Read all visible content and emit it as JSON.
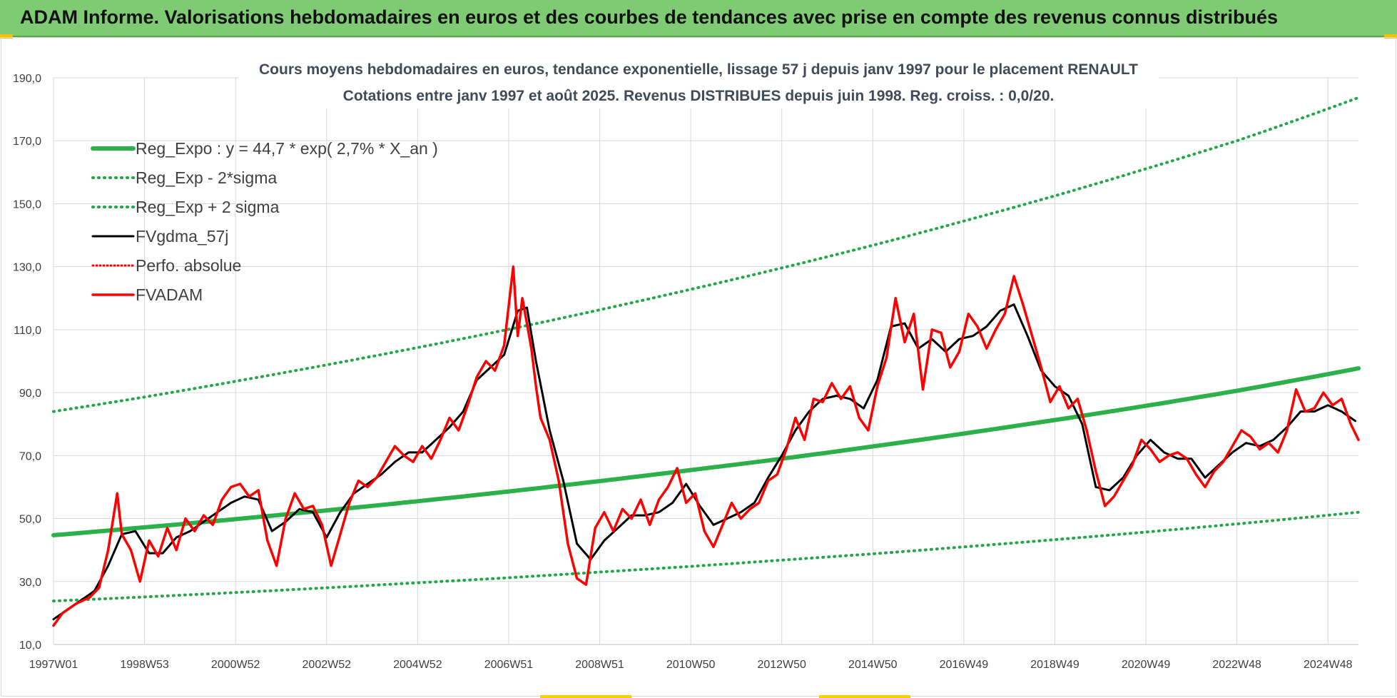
{
  "header": {
    "banner_title": "ADAM Informe. Valorisations hebdomadaires en euros et des courbes de tendances avec prise en compte des revenus connus distribués"
  },
  "colors": {
    "banner": "#7ecb74",
    "reg_expo": "#2bb04a",
    "reg_band": "#1fa845",
    "fvgdma": "#000000",
    "perfo": "#ff0000",
    "fvadam": "#ff0000",
    "grid": "#d9d9d9"
  },
  "chart_data": {
    "type": "line",
    "title": [
      "Cours moyens hebdomadaires en euros, tendance exponentielle, lissage 57 j depuis janv 1997 pour le placement RENAULT",
      "Cotations entre janv 1997 et août 2025.  Revenus DISTRIBUES depuis juin 1998.  Reg. croiss. : 0,0/20."
    ],
    "xlabel": "",
    "ylabel": "",
    "ylim": [
      10,
      190
    ],
    "xlim": [
      1997.0,
      2025.67
    ],
    "yticks": [
      "10,0",
      "30,0",
      "50,0",
      "70,0",
      "90,0",
      "110,0",
      "130,0",
      "150,0",
      "170,0",
      "190,0"
    ],
    "xticks": [
      {
        "label": "1997W01",
        "x": 1997.0
      },
      {
        "label": "1998W53",
        "x": 1999.0
      },
      {
        "label": "2000W52",
        "x": 2001.0
      },
      {
        "label": "2002W52",
        "x": 2003.0
      },
      {
        "label": "2004W52",
        "x": 2005.0
      },
      {
        "label": "2006W51",
        "x": 2007.0
      },
      {
        "label": "2008W51",
        "x": 2009.0
      },
      {
        "label": "2010W50",
        "x": 2011.0
      },
      {
        "label": "2012W50",
        "x": 2013.0
      },
      {
        "label": "2014W50",
        "x": 2015.0
      },
      {
        "label": "2016W49",
        "x": 2017.0
      },
      {
        "label": "2018W49",
        "x": 2019.0
      },
      {
        "label": "2020W49",
        "x": 2021.0
      },
      {
        "label": "2022W48",
        "x": 2023.0
      },
      {
        "label": "2024W48",
        "x": 2025.0
      }
    ],
    "grid": true,
    "legend_position": "top-left",
    "series": [
      {
        "name": "Reg_Expo : y = 44,7 * exp( 2,7% *  X_an )",
        "style": "solid-thick",
        "x": [
          1997.0,
          1999.0,
          2001.0,
          2003.0,
          2005.0,
          2007.0,
          2009.0,
          2011.0,
          2013.0,
          2015.0,
          2017.0,
          2019.0,
          2021.0,
          2023.0,
          2025.67
        ],
        "y": [
          44.7,
          47.2,
          49.8,
          52.6,
          55.5,
          58.6,
          61.9,
          65.4,
          69.0,
          72.9,
          77.0,
          81.3,
          85.8,
          90.6,
          97.7
        ]
      },
      {
        "name": "Reg_Exp - 2*sigma",
        "style": "dotted",
        "x": [
          1997.0,
          1999.0,
          2001.0,
          2003.0,
          2005.0,
          2007.0,
          2009.0,
          2011.0,
          2013.0,
          2015.0,
          2017.0,
          2019.0,
          2021.0,
          2023.0,
          2025.67
        ],
        "y": [
          23.8,
          25.1,
          26.5,
          28.0,
          29.6,
          31.2,
          33.0,
          34.8,
          36.8,
          38.8,
          41.0,
          43.3,
          45.7,
          48.3,
          52.0
        ]
      },
      {
        "name": "Reg_Exp + 2 sigma",
        "style": "dotted",
        "x": [
          1997.0,
          1999.0,
          2001.0,
          2003.0,
          2005.0,
          2007.0,
          2009.0,
          2011.0,
          2013.0,
          2015.0,
          2017.0,
          2019.0,
          2021.0,
          2023.0,
          2025.67
        ],
        "y": [
          84.0,
          88.6,
          93.6,
          98.8,
          104.3,
          110.1,
          116.3,
          122.8,
          129.6,
          136.8,
          144.5,
          152.5,
          161.1,
          170.0,
          183.7
        ]
      },
      {
        "name": "FVgdma_57j",
        "style": "solid",
        "x": [
          1997.0,
          1997.3,
          1997.6,
          1997.9,
          1998.2,
          1998.5,
          1998.8,
          1999.1,
          1999.4,
          1999.7,
          2000.0,
          2000.3,
          2000.6,
          2000.9,
          2001.2,
          2001.5,
          2001.8,
          2002.1,
          2002.4,
          2002.7,
          2003.0,
          2003.3,
          2003.6,
          2003.9,
          2004.2,
          2004.5,
          2004.8,
          2005.1,
          2005.4,
          2005.7,
          2006.0,
          2006.3,
          2006.6,
          2006.9,
          2007.2,
          2007.4,
          2007.6,
          2007.9,
          2008.2,
          2008.5,
          2008.8,
          2009.1,
          2009.4,
          2009.7,
          2010.0,
          2010.3,
          2010.6,
          2010.9,
          2011.2,
          2011.5,
          2011.8,
          2012.1,
          2012.4,
          2012.7,
          2013.0,
          2013.3,
          2013.6,
          2013.9,
          2014.2,
          2014.5,
          2014.8,
          2015.1,
          2015.4,
          2015.7,
          2016.0,
          2016.3,
          2016.6,
          2016.9,
          2017.2,
          2017.5,
          2017.8,
          2018.1,
          2018.4,
          2018.7,
          2019.0,
          2019.3,
          2019.6,
          2019.9,
          2020.2,
          2020.5,
          2020.8,
          2021.1,
          2021.4,
          2021.7,
          2022.0,
          2022.3,
          2022.6,
          2022.9,
          2023.2,
          2023.5,
          2023.8,
          2024.1,
          2024.4,
          2024.7,
          2025.0,
          2025.3,
          2025.6
        ],
        "y": [
          18,
          21,
          24,
          27,
          35,
          45,
          46,
          39,
          39,
          44,
          46,
          49,
          52,
          55,
          57,
          56,
          46,
          49,
          53,
          52,
          44,
          52,
          58,
          61,
          64,
          68,
          71,
          71,
          75,
          79,
          84,
          94,
          98,
          102,
          116,
          117,
          100,
          78,
          62,
          42,
          37,
          43,
          47,
          51,
          51,
          52,
          55,
          61,
          54,
          48,
          50,
          52,
          55,
          63,
          70,
          78,
          84,
          88,
          89,
          88,
          85,
          94,
          111,
          112,
          104,
          107,
          103,
          107,
          108,
          111,
          116,
          118,
          108,
          97,
          92,
          89,
          80,
          60,
          59,
          63,
          70,
          75,
          71,
          69,
          69,
          63,
          67,
          71,
          74,
          73,
          75,
          79,
          84,
          84,
          86,
          84,
          81
        ]
      },
      {
        "name": "Perfo. absolue",
        "style": "dotted",
        "x": [
          1997.0,
          2025.67
        ],
        "y": [
          null,
          null
        ]
      },
      {
        "name": "FVADAM",
        "style": "solid-thick",
        "x": [
          1997.0,
          1997.2,
          1997.5,
          1997.8,
          1998.0,
          1998.2,
          1998.4,
          1998.5,
          1998.7,
          1998.9,
          1999.1,
          1999.3,
          1999.5,
          1999.7,
          1999.9,
          2000.1,
          2000.3,
          2000.5,
          2000.7,
          2000.9,
          2001.1,
          2001.3,
          2001.5,
          2001.7,
          2001.9,
          2002.1,
          2002.3,
          2002.5,
          2002.7,
          2002.9,
          2003.1,
          2003.3,
          2003.5,
          2003.7,
          2003.9,
          2004.1,
          2004.3,
          2004.5,
          2004.7,
          2004.9,
          2005.1,
          2005.3,
          2005.5,
          2005.7,
          2005.9,
          2006.1,
          2006.3,
          2006.5,
          2006.7,
          2006.9,
          2007.1,
          2007.2,
          2007.3,
          2007.4,
          2007.5,
          2007.6,
          2007.7,
          2007.9,
          2008.1,
          2008.3,
          2008.5,
          2008.7,
          2008.9,
          2009.1,
          2009.3,
          2009.5,
          2009.7,
          2009.9,
          2010.1,
          2010.3,
          2010.5,
          2010.7,
          2010.9,
          2011.1,
          2011.3,
          2011.5,
          2011.7,
          2011.9,
          2012.1,
          2012.3,
          2012.5,
          2012.7,
          2012.9,
          2013.1,
          2013.3,
          2013.5,
          2013.7,
          2013.9,
          2014.1,
          2014.3,
          2014.5,
          2014.7,
          2014.9,
          2015.1,
          2015.3,
          2015.5,
          2015.7,
          2015.9,
          2016.1,
          2016.3,
          2016.5,
          2016.7,
          2016.9,
          2017.1,
          2017.3,
          2017.5,
          2017.7,
          2017.9,
          2018.1,
          2018.3,
          2018.5,
          2018.7,
          2018.9,
          2019.1,
          2019.3,
          2019.5,
          2019.7,
          2019.9,
          2020.1,
          2020.3,
          2020.5,
          2020.7,
          2020.9,
          2021.1,
          2021.3,
          2021.5,
          2021.7,
          2021.9,
          2022.1,
          2022.3,
          2022.5,
          2022.7,
          2022.9,
          2023.1,
          2023.3,
          2023.5,
          2023.7,
          2023.9,
          2024.1,
          2024.3,
          2024.5,
          2024.7,
          2024.9,
          2025.1,
          2025.3,
          2025.5,
          2025.67
        ],
        "y": [
          16,
          20,
          23,
          25,
          28,
          40,
          58,
          45,
          40,
          30,
          43,
          38,
          47,
          40,
          50,
          46,
          51,
          48,
          56,
          60,
          61,
          57,
          59,
          43,
          35,
          50,
          58,
          53,
          54,
          48,
          35,
          45,
          55,
          62,
          60,
          63,
          68,
          73,
          70,
          68,
          73,
          69,
          75,
          82,
          78,
          86,
          95,
          100,
          97,
          105,
          130,
          108,
          120,
          112,
          104,
          92,
          82,
          75,
          62,
          42,
          31,
          29,
          47,
          52,
          46,
          53,
          50,
          56,
          48,
          56,
          60,
          66,
          55,
          58,
          46,
          41,
          48,
          55,
          50,
          53,
          55,
          62,
          64,
          72,
          82,
          75,
          88,
          87,
          93,
          88,
          92,
          82,
          78,
          92,
          101,
          120,
          106,
          115,
          91,
          110,
          109,
          98,
          103,
          115,
          111,
          104,
          110,
          115,
          127,
          118,
          108,
          98,
          87,
          92,
          85,
          88,
          78,
          65,
          54,
          57,
          62,
          67,
          75,
          72,
          68,
          70,
          71,
          69,
          64,
          60,
          65,
          68,
          73,
          78,
          76,
          72,
          74,
          71,
          78,
          91,
          84,
          85,
          90,
          86,
          88,
          80,
          75
        ]
      }
    ]
  }
}
